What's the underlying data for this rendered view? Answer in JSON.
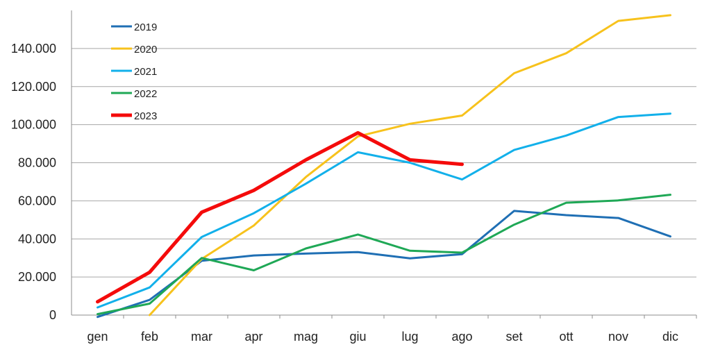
{
  "chart_data": {
    "type": "line",
    "categories": [
      "gen",
      "feb",
      "mar",
      "apr",
      "mag",
      "giu",
      "lug",
      "ago",
      "set",
      "ott",
      "nov",
      "dic"
    ],
    "ylim": [
      0,
      160000
    ],
    "yticks": [
      0,
      20000,
      40000,
      60000,
      80000,
      100000,
      120000,
      140000
    ],
    "ytick_labels": [
      "0",
      "20.000",
      "40.000",
      "60.000",
      "80.000",
      "100.000",
      "120.000",
      "140.000"
    ],
    "grid": "horizontal",
    "legend_position": "top-left",
    "series": [
      {
        "name": "2019",
        "color": "#1f6fb4",
        "values": [
          -1000,
          8000,
          28500,
          31300,
          32300,
          33100,
          29800,
          32000,
          54700,
          52500,
          51000,
          41300
        ]
      },
      {
        "name": "2020",
        "color": "#f7c21c",
        "values": [
          null,
          0,
          29500,
          47000,
          72500,
          93800,
          100500,
          104800,
          127000,
          137500,
          154500,
          157500
        ]
      },
      {
        "name": "2021",
        "color": "#12b0ea",
        "values": [
          4000,
          14500,
          41000,
          53500,
          69000,
          85500,
          80000,
          71200,
          86700,
          94300,
          104000,
          105800
        ]
      },
      {
        "name": "2022",
        "color": "#1fa856",
        "values": [
          500,
          6000,
          30000,
          23500,
          35000,
          42300,
          33800,
          32800,
          47500,
          59000,
          60200,
          63200
        ]
      },
      {
        "name": "2023",
        "color": "#f40b0b",
        "values": [
          7000,
          22500,
          54000,
          65500,
          81500,
          95700,
          81500,
          79200,
          null,
          null,
          null,
          null
        ]
      }
    ]
  }
}
